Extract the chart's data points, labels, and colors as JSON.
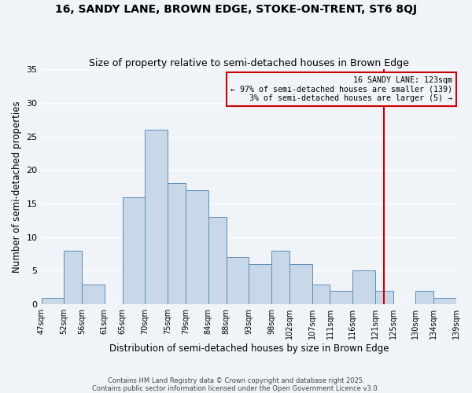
{
  "title": "16, SANDY LANE, BROWN EDGE, STOKE-ON-TRENT, ST6 8QJ",
  "subtitle": "Size of property relative to semi-detached houses in Brown Edge",
  "xlabel": "Distribution of semi-detached houses by size in Brown Edge",
  "ylabel": "Number of semi-detached properties",
  "bins": [
    47,
    52,
    56,
    61,
    65,
    70,
    75,
    79,
    84,
    88,
    93,
    98,
    102,
    107,
    111,
    116,
    121,
    125,
    130,
    134,
    139
  ],
  "counts": [
    1,
    8,
    3,
    0,
    16,
    26,
    18,
    17,
    13,
    7,
    6,
    8,
    6,
    3,
    2,
    5,
    2,
    0,
    2,
    1
  ],
  "bar_color": "#c8d8e8",
  "bar_edge_color": "#5b8db8",
  "vline_x": 123,
  "vline_color": "#cc0000",
  "annotation_line1": "16 SANDY LANE: 123sqm",
  "annotation_line2": "← 97% of semi-detached houses are smaller (139)",
  "annotation_line3": "   3% of semi-detached houses are larger (5) →",
  "annotation_box_color": "#cc0000",
  "ylim": [
    0,
    35
  ],
  "yticks": [
    0,
    5,
    10,
    15,
    20,
    25,
    30,
    35
  ],
  "bg_color": "#f0f4f8",
  "grid_color": "#ffffff",
  "footer1": "Contains HM Land Registry data © Crown copyright and database right 2025.",
  "footer2": "Contains public sector information licensed under the Open Government Licence v3.0.",
  "title_fontsize": 10,
  "subtitle_fontsize": 9,
  "xlabel_fontsize": 8.5,
  "ylabel_fontsize": 8.5,
  "tick_labels": [
    "47sqm",
    "52sqm",
    "56sqm",
    "61sqm",
    "65sqm",
    "70sqm",
    "75sqm",
    "79sqm",
    "84sqm",
    "88sqm",
    "93sqm",
    "98sqm",
    "102sqm",
    "107sqm",
    "111sqm",
    "116sqm",
    "121sqm",
    "125sqm",
    "130sqm",
    "134sqm",
    "139sqm"
  ]
}
